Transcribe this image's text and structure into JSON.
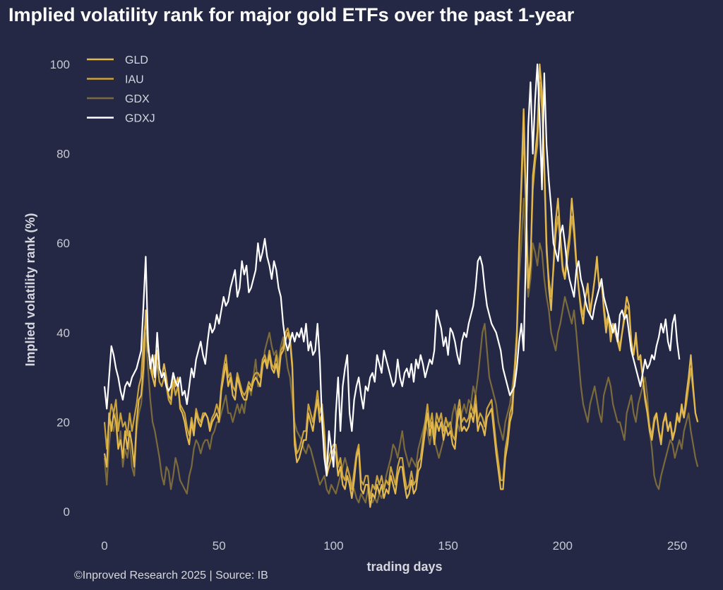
{
  "title": "Implied volatility rank for major gold ETFs over the past 1-year",
  "credit": "©Inproved Research 2025 | Source: IB",
  "colors": {
    "background": "#242844",
    "GLD": "#e3b94f",
    "IAU": "#c9a23e",
    "GDX": "#7a6a3c",
    "GDXJ": "#ffffff"
  },
  "chart_data": {
    "type": "line",
    "title": "Implied volatility rank for major gold ETFs over the past 1-year",
    "xlabel": "trading days",
    "ylabel": "Implied volatility rank (%)",
    "xlim": [
      -5,
      263
    ],
    "ylim": [
      -2,
      103
    ],
    "xticks": [
      0,
      50,
      100,
      150,
      200,
      250
    ],
    "yticks": [
      0,
      20,
      40,
      60,
      80,
      100
    ],
    "grid": false,
    "legend": "top-left",
    "x_step": 1,
    "series": [
      {
        "name": "GLD",
        "color": "#e3b94f",
        "values": [
          13,
          10,
          22,
          18,
          22,
          20,
          14,
          16,
          12,
          18,
          14,
          18,
          15,
          10,
          20,
          25,
          26,
          32,
          45,
          36,
          34,
          30,
          28,
          36,
          32,
          30,
          33,
          30,
          26,
          25,
          31,
          28,
          30,
          23,
          22,
          20,
          17,
          15,
          20,
          17,
          22,
          20,
          19,
          21,
          22,
          21,
          18,
          20,
          21,
          22,
          20,
          27,
          30,
          33,
          28,
          30,
          26,
          25,
          30,
          28,
          26,
          25,
          25,
          28,
          27,
          29,
          30,
          29,
          28,
          33,
          34,
          32,
          35,
          32,
          31,
          33,
          30,
          35,
          36,
          38,
          40,
          38,
          32,
          15,
          11,
          12,
          14,
          16,
          16,
          22,
          20,
          18,
          22,
          25,
          20,
          22,
          16,
          8,
          10,
          12,
          14,
          13,
          8,
          10,
          6,
          5,
          8,
          6,
          3,
          7,
          12,
          14,
          5,
          4,
          6,
          6,
          1,
          4,
          3,
          6,
          4,
          6,
          3,
          5,
          4,
          8,
          6,
          4,
          8,
          10,
          10,
          6,
          3,
          4,
          7,
          4,
          5,
          9,
          10,
          14,
          18,
          22,
          17,
          20,
          15,
          20,
          18,
          20,
          16,
          19,
          17,
          18,
          15,
          14,
          20,
          23,
          18,
          19,
          18,
          19,
          22,
          20,
          24,
          18,
          20,
          19,
          17,
          21,
          22,
          23,
          18,
          13,
          9,
          5,
          5,
          12,
          15,
          20,
          22,
          30,
          38,
          58,
          74,
          90,
          70,
          50,
          55,
          75,
          80,
          85,
          100,
          94,
          78,
          60,
          50,
          45,
          55,
          65,
          70,
          62,
          55,
          52,
          58,
          62,
          70,
          64,
          56,
          50,
          45,
          42,
          48,
          51,
          44,
          48,
          52,
          57,
          50,
          52,
          45,
          40,
          44,
          38,
          42,
          40,
          38,
          36,
          40,
          44,
          48,
          46,
          38,
          35,
          40,
          34,
          35,
          30,
          25,
          22,
          18,
          16,
          20,
          22,
          18,
          15,
          20,
          22,
          18,
          20,
          16,
          18,
          22,
          20,
          24,
          21,
          26,
          30,
          35,
          28,
          22,
          20
        ]
      },
      {
        "name": "IAU",
        "color": "#c9a23e",
        "values": [
          20,
          14,
          20,
          24,
          22,
          25,
          18,
          22,
          19,
          20,
          17,
          22,
          18,
          21,
          24,
          28,
          30,
          38,
          43,
          38,
          32,
          30,
          35,
          33,
          29,
          28,
          30,
          28,
          25,
          24,
          29,
          26,
          28,
          24,
          23,
          22,
          19,
          17,
          21,
          18,
          23,
          21,
          20,
          22,
          22,
          21,
          19,
          21,
          22,
          24,
          22,
          28,
          32,
          35,
          30,
          31,
          28,
          27,
          31,
          29,
          27,
          26,
          27,
          29,
          28,
          30,
          31,
          31,
          30,
          34,
          35,
          33,
          36,
          33,
          32,
          35,
          31,
          36,
          37,
          40,
          41,
          39,
          33,
          17,
          13,
          14,
          16,
          18,
          18,
          24,
          22,
          20,
          23,
          27,
          22,
          24,
          18,
          10,
          12,
          14,
          15,
          15,
          10,
          12,
          8,
          7,
          10,
          8,
          5,
          9,
          13,
          15,
          7,
          6,
          8,
          8,
          3,
          6,
          5,
          8,
          6,
          8,
          5,
          7,
          6,
          10,
          8,
          6,
          10,
          12,
          12,
          8,
          5,
          6,
          9,
          6,
          7,
          11,
          12,
          16,
          20,
          24,
          19,
          22,
          17,
          22,
          20,
          22,
          18,
          21,
          19,
          20,
          17,
          16,
          22,
          25,
          20,
          21,
          20,
          21,
          24,
          22,
          26,
          20,
          22,
          21,
          19,
          23,
          24,
          25,
          20,
          15,
          11,
          7,
          7,
          14,
          17,
          22,
          24,
          32,
          40,
          60,
          72,
          85,
          68,
          52,
          56,
          72,
          78,
          82,
          96,
          90,
          76,
          58,
          52,
          48,
          54,
          62,
          66,
          60,
          54,
          52,
          56,
          60,
          66,
          62,
          55,
          50,
          46,
          44,
          48,
          50,
          45,
          48,
          52,
          56,
          50,
          51,
          46,
          42,
          44,
          40,
          42,
          41,
          39,
          37,
          40,
          43,
          46,
          45,
          38,
          35,
          39,
          34,
          34,
          30,
          26,
          23,
          19,
          17,
          21,
          22,
          18,
          16,
          20,
          21,
          18,
          20,
          17,
          18,
          21,
          20,
          23,
          21,
          24,
          28,
          32,
          27,
          22,
          20
        ]
      },
      {
        "name": "GDX",
        "color": "#7a6a3c",
        "values": [
          12,
          6,
          15,
          20,
          18,
          22,
          14,
          18,
          10,
          14,
          12,
          16,
          10,
          8,
          18,
          22,
          24,
          30,
          40,
          32,
          25,
          20,
          18,
          15,
          12,
          8,
          6,
          10,
          9,
          5,
          8,
          12,
          10,
          7,
          6,
          5,
          4,
          8,
          10,
          14,
          16,
          15,
          13,
          15,
          16,
          16,
          14,
          17,
          18,
          20,
          20,
          22,
          24,
          26,
          22,
          22,
          20,
          22,
          24,
          22,
          24,
          22,
          26,
          28,
          26,
          30,
          34,
          28,
          28,
          32,
          36,
          38,
          40,
          37,
          35,
          36,
          33,
          37,
          39,
          36,
          32,
          30,
          25,
          20,
          18,
          17,
          16,
          14,
          13,
          15,
          14,
          12,
          10,
          8,
          6,
          7,
          8,
          5,
          4,
          6,
          5,
          4,
          6,
          8,
          10,
          12,
          10,
          8,
          6,
          5,
          3,
          2,
          4,
          3,
          2,
          5,
          4,
          2,
          3,
          2,
          4,
          3,
          5,
          8,
          10,
          12,
          15,
          14,
          12,
          15,
          18,
          14,
          12,
          10,
          12,
          11,
          10,
          14,
          16,
          18,
          20,
          18,
          15,
          18,
          16,
          14,
          12,
          14,
          16,
          18,
          20,
          18,
          22,
          24,
          20,
          18,
          22,
          24,
          22,
          25,
          24,
          28,
          26,
          30,
          35,
          40,
          42,
          36,
          30,
          28,
          26,
          24,
          20,
          18,
          16,
          20,
          22,
          24,
          28,
          32,
          40,
          52,
          60,
          70,
          55,
          48,
          52,
          60,
          58,
          55,
          60,
          58,
          52,
          48,
          45,
          40,
          38,
          36,
          40,
          42,
          45,
          48,
          46,
          44,
          42,
          45,
          40,
          34,
          28,
          24,
          22,
          20,
          24,
          26,
          28,
          25,
          22,
          20,
          26,
          28,
          30,
          28,
          24,
          22,
          20,
          20,
          18,
          16,
          22,
          24,
          26,
          22,
          20,
          24,
          26,
          28,
          30,
          26,
          18,
          14,
          8,
          6,
          5,
          8,
          10,
          12,
          14,
          16,
          15,
          12,
          14,
          16,
          14,
          18,
          20,
          22,
          18,
          15,
          12,
          10
        ]
      },
      {
        "name": "GDXJ",
        "color": "#ffffff",
        "values": [
          28,
          23,
          30,
          37,
          35,
          32,
          30,
          27,
          25,
          28,
          29,
          28,
          30,
          31,
          32,
          34,
          36,
          46,
          57,
          38,
          32,
          35,
          30,
          40,
          32,
          30,
          31,
          28,
          27,
          28,
          31,
          29,
          28,
          30,
          26,
          27,
          24,
          28,
          32,
          30,
          34,
          36,
          38,
          35,
          33,
          38,
          42,
          40,
          41,
          44,
          42,
          45,
          48,
          46,
          47,
          50,
          52,
          54,
          48,
          50,
          56,
          53,
          55,
          49,
          50,
          52,
          54,
          60,
          56,
          58,
          61,
          57,
          55,
          52,
          56,
          54,
          50,
          48,
          42,
          38,
          36,
          38,
          40,
          38,
          40,
          39,
          41,
          38,
          42,
          36,
          38,
          35,
          36,
          42,
          34,
          20,
          12,
          8,
          18,
          14,
          10,
          22,
          30,
          18,
          28,
          32,
          35,
          22,
          18,
          25,
          28,
          30,
          26,
          23,
          28,
          27,
          30,
          31,
          29,
          35,
          33,
          31,
          36,
          34,
          32,
          30,
          28,
          29,
          34,
          30,
          28,
          31,
          32,
          30,
          33,
          29,
          34,
          32,
          35,
          33,
          30,
          32,
          34,
          33,
          36,
          45,
          43,
          41,
          37,
          39,
          35,
          41,
          40,
          38,
          35,
          33,
          38,
          40,
          39,
          42,
          44,
          46,
          50,
          56,
          57,
          55,
          50,
          46,
          44,
          42,
          41,
          40,
          38,
          36,
          32,
          30,
          28,
          26,
          27,
          28,
          32,
          38,
          42,
          36,
          58,
          86,
          96,
          80,
          92,
          100,
          88,
          72,
          98,
          82,
          74,
          68,
          60,
          58,
          56,
          62,
          64,
          60,
          55,
          52,
          50,
          48,
          54,
          56,
          52,
          50,
          47,
          45,
          44,
          43,
          46,
          48,
          50,
          52,
          48,
          46,
          44,
          42,
          40,
          42,
          38,
          44,
          45,
          43,
          44,
          40,
          36,
          34,
          32,
          30,
          28,
          31,
          34,
          32,
          33,
          35,
          34,
          37,
          39,
          42,
          40,
          43,
          38,
          36,
          42,
          44,
          38,
          34
        ]
      }
    ]
  }
}
